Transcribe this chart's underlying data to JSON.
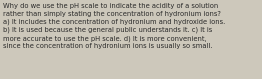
{
  "text": "Why do we use the pH scale to indicate the acidity of a solution\nrather than simply stating the concentration of hydronium ions?\na) It includes the concentration of hydronium and hydroxide ions.\nb) It is used because the general public understands it. c) It is\nmore accurate to use the pH scale. d) It is more convenient,\nsince the concentration of hydronium ions is usually so small.",
  "background_color": "#cdc8bb",
  "text_color": "#2a2a2a",
  "font_size": 4.85,
  "fig_width": 2.62,
  "fig_height": 0.79,
  "dpi": 100
}
